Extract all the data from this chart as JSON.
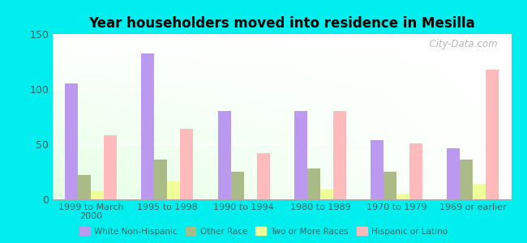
{
  "title": "Year householders moved into residence in Mesilla",
  "categories": [
    "1999 to March\n2000",
    "1995 to 1998",
    "1990 to 1994",
    "1980 to 1989",
    "1970 to 1979",
    "1969 or earlier"
  ],
  "series": {
    "White Non-Hispanic": [
      105,
      132,
      80,
      80,
      54,
      46
    ],
    "Other Race": [
      22,
      36,
      25,
      28,
      25,
      36
    ],
    "Two or More Races": [
      7,
      16,
      0,
      9,
      5,
      14
    ],
    "Hispanic or Latino": [
      58,
      64,
      42,
      80,
      51,
      118
    ]
  },
  "colors": {
    "White Non-Hispanic": "#bb99ee",
    "Other Race": "#aabb88",
    "Two or More Races": "#eeff99",
    "Hispanic or Latino": "#ffbbbb"
  },
  "ylim": [
    0,
    150
  ],
  "yticks": [
    0,
    50,
    100,
    150
  ],
  "background_color": "#00eeee",
  "watermark": "  City-Data.com",
  "bar_width": 0.17,
  "legend_labels": [
    "White Non-Hispanic",
    "Other Race",
    "Two or More Races",
    "Hispanic or Latino"
  ],
  "title_fontsize": 12,
  "tick_fontsize": 8,
  "tick_color": "#336666"
}
